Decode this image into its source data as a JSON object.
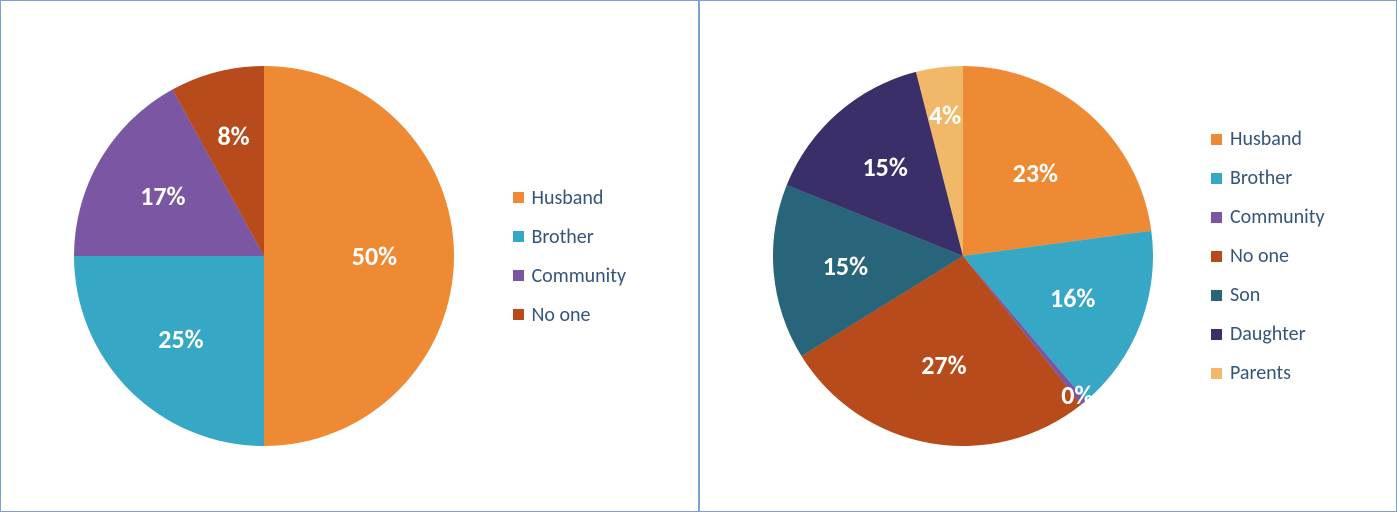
{
  "charts": [
    {
      "type": "pie",
      "radius": 190,
      "start_angle": -90,
      "label_fontsize": 26,
      "label_color": "#ffffff",
      "legend_fontsize": 20,
      "legend_color": "#33557a",
      "border_color": "#78a3d0",
      "background_color": "#ffffff",
      "slices": [
        {
          "label": "Husband",
          "value": 50,
          "text": "50%",
          "color": "#ed8a33",
          "label_r": 0.58
        },
        {
          "label": "Brother",
          "value": 25,
          "text": "25%",
          "color": "#36a7c4",
          "label_r": 0.62
        },
        {
          "label": "Community",
          "value": 17,
          "text": "17%",
          "color": "#7b57a3",
          "label_r": 0.62
        },
        {
          "label": "No one",
          "value": 8,
          "text": "8%",
          "color": "#b74b1b",
          "label_r": 0.65
        }
      ]
    },
    {
      "type": "pie",
      "radius": 190,
      "start_angle": -90,
      "label_fontsize": 26,
      "label_color": "#ffffff",
      "legend_fontsize": 20,
      "legend_color": "#33557a",
      "border_color": "#78a3d0",
      "background_color": "#ffffff",
      "slices": [
        {
          "label": "Husband",
          "value": 23,
          "text": "23%",
          "color": "#ed8a33",
          "label_r": 0.58
        },
        {
          "label": "Brother",
          "value": 16,
          "text": "16%",
          "color": "#36a7c4",
          "label_r": 0.62
        },
        {
          "label": "Community",
          "value": 0.5,
          "text": "0%",
          "color": "#7b57a3",
          "label_r": 0.95,
          "label_override_color": "#ffffff"
        },
        {
          "label": "No one",
          "value": 27,
          "text": "27%",
          "color": "#b74b1b",
          "label_r": 0.58
        },
        {
          "label": "Son",
          "value": 15,
          "text": "15%",
          "color": "#28647a",
          "label_r": 0.62
        },
        {
          "label": "Daughter",
          "value": 15,
          "text": "15%",
          "color": "#3a2f68",
          "label_r": 0.62
        },
        {
          "label": "Parents",
          "value": 4,
          "text": "4%",
          "color": "#f2b86a",
          "label_r": 0.75
        }
      ]
    }
  ]
}
